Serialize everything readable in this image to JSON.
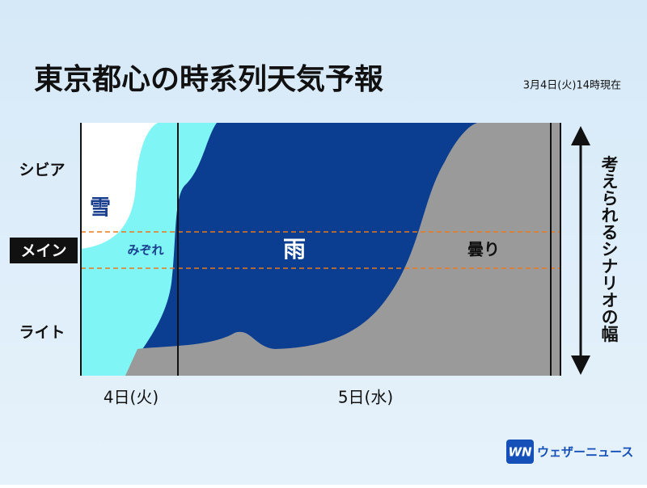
{
  "header": {
    "title": "東京都心の時系列天気予報",
    "timestamp": "3月4日(火)14時現在"
  },
  "rows": [
    "シビア",
    "メイン",
    "ライト"
  ],
  "regions": [
    "雪",
    "みぞれ",
    "雨",
    "曇り"
  ],
  "days": [
    "4日(火)",
    "5日(水)"
  ],
  "range_label": "考えられるシナリオの幅",
  "logo": {
    "mark": "WN",
    "name": "ウェザーニュース"
  }
}
